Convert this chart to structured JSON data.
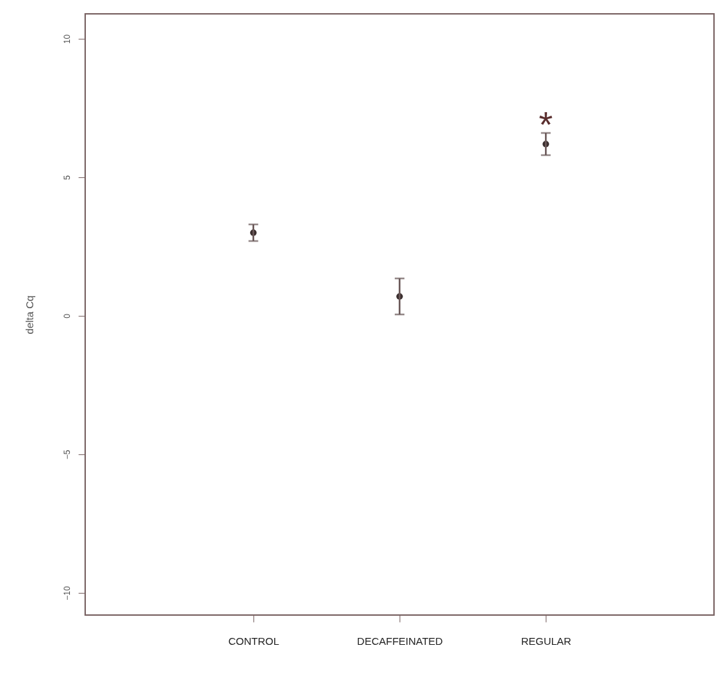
{
  "chart_data": {
    "type": "scatter",
    "ylabel": "delta Cq",
    "categories": [
      "CONTROL",
      "DECAFFEINATED",
      "REGULAR"
    ],
    "values": [
      3.0,
      0.7,
      6.2
    ],
    "errors": [
      0.3,
      0.65,
      0.4
    ],
    "color": "#3a2e2e",
    "marker": "circle",
    "ylim": [
      -10.8,
      10.9
    ],
    "yticks": [
      -10,
      -5,
      0,
      5,
      10
    ],
    "annotations": [
      "*"
    ],
    "grid": false
  }
}
